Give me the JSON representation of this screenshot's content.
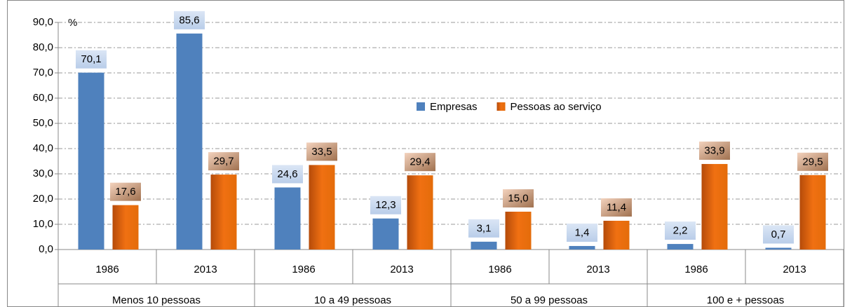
{
  "chart_data": {
    "type": "bar",
    "unit_label": "%",
    "categories": [
      "1986",
      "2013",
      "1986",
      "2013",
      "1986",
      "2013",
      "1986",
      "2013"
    ],
    "group_labels": [
      "Menos 10 pessoas",
      "10 a 49 pessoas",
      "50 a 99 pessoas",
      "100 e + pessoas"
    ],
    "series": [
      {
        "name": "Empresas",
        "color": "#4f81bd",
        "values": [
          70.1,
          85.6,
          24.6,
          12.3,
          3.1,
          1.4,
          2.2,
          0.7
        ],
        "value_labels": [
          "70,1",
          "85,6",
          "24,6",
          "12,3",
          "3,1",
          "1,4",
          "2,2",
          "0,7"
        ]
      },
      {
        "name": "Pessoas ao serviço",
        "color": "#e46c0a",
        "values": [
          17.6,
          29.7,
          33.5,
          29.4,
          15.0,
          11.4,
          33.9,
          29.5
        ],
        "value_labels": [
          "17,6",
          "29,7",
          "33,5",
          "29,4",
          "15,0",
          "11,4",
          "33,9",
          "29,5"
        ]
      }
    ],
    "ylim": [
      0,
      90
    ],
    "yticks": [
      {
        "value": 0,
        "label": "0,0"
      },
      {
        "value": 10,
        "label": "10,0"
      },
      {
        "value": 20,
        "label": "20,0"
      },
      {
        "value": 30,
        "label": "30,0"
      },
      {
        "value": 40,
        "label": "40,0"
      },
      {
        "value": 50,
        "label": "50,0"
      },
      {
        "value": 60,
        "label": "60,0"
      },
      {
        "value": 70,
        "label": "70,0"
      },
      {
        "value": 80,
        "label": "80,0"
      },
      {
        "value": 90,
        "label": "90,0"
      }
    ],
    "grid": true,
    "legend": "upper center"
  }
}
